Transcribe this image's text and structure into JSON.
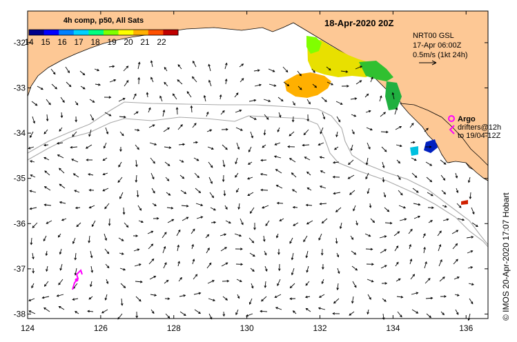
{
  "map": {
    "title": "18-Apr-2020 20Z",
    "colorbar": {
      "title": "4h comp, p50, All Sats",
      "ticks": [
        "14",
        "15",
        "16",
        "17",
        "18",
        "19",
        "20",
        "21",
        "22"
      ],
      "range": [
        14,
        23
      ],
      "colors": [
        "#00008b",
        "#0000ff",
        "#0080ff",
        "#00d0ff",
        "#00ff80",
        "#80ff00",
        "#ffff00",
        "#ffb000",
        "#ff5000",
        "#c00000"
      ]
    },
    "legend": {
      "product": "NRT00 GSL",
      "time": "17-Apr 06:00Z",
      "scale": "0.5m/s (1kt 24h)",
      "argo_label": "Argo",
      "drifters_label": "drifters@12h",
      "drifters_to": "to 19/04-12Z"
    },
    "credit": "© IMOS 20-Apr-2020 17:07 Hobart",
    "x_ticks": [
      124,
      126,
      128,
      130,
      132,
      134,
      136
    ],
    "y_ticks": [
      -32,
      -33,
      -34,
      -35,
      -36,
      -37,
      -38
    ],
    "lon_range": [
      124,
      136.6
    ],
    "lat_range": [
      -38.1,
      -31.3
    ],
    "colors": {
      "land": "#fdc895",
      "ocean": "#ffffff",
      "argo": "#ff00ff",
      "bathy": "#a8a8a8"
    }
  }
}
